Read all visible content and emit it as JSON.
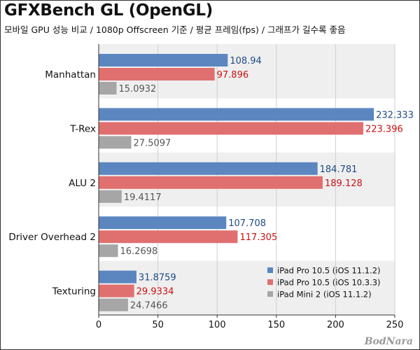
{
  "chart_data": {
    "type": "bar",
    "orientation": "horizontal",
    "title": "GFXBench GL (OpenGL)",
    "subtitle": "모바일 GPU 성능 비교 / 1080p Offscreen 기준 / 평균 프레임(fps) / 그래프가 길수록 좋음",
    "categories": [
      "Manhattan",
      "T-Rex",
      "ALU 2",
      "Driver Overhead 2",
      "Texturing"
    ],
    "series": [
      {
        "name": "iPad Pro 10.5 (iOS 11.1.2)",
        "color": "#5b86c0",
        "label_color": "#1f4a85",
        "values": [
          108.94,
          232.333,
          184.781,
          107.708,
          31.8759
        ]
      },
      {
        "name": "iPad Pro 10.5 (iOS 10.3.3)",
        "color": "#e0706f",
        "label_color": "#cc1111",
        "values": [
          97.896,
          223.396,
          189.128,
          117.305,
          29.9334
        ]
      },
      {
        "name": "iPad Mini 2 (iOS 11.1.2)",
        "color": "#a6a6a6",
        "label_color": "#555555",
        "values": [
          15.0932,
          27.5097,
          19.4117,
          16.2698,
          24.7466
        ]
      }
    ],
    "value_labels": [
      [
        "108.94",
        "232.333",
        "184.781",
        "107.708",
        "31.8759"
      ],
      [
        "97.896",
        "223.396",
        "189.128",
        "117.305",
        "29.9334"
      ],
      [
        "15.0932",
        "27.5097",
        "19.4117",
        "16.2698",
        "24.7466"
      ]
    ],
    "xlim": [
      0,
      250
    ],
    "xticks": [
      0,
      50,
      100,
      150,
      200,
      250
    ],
    "grid": true,
    "legend_position": "bottom-right",
    "band_color": "#efefef"
  },
  "watermark": "BodNara"
}
